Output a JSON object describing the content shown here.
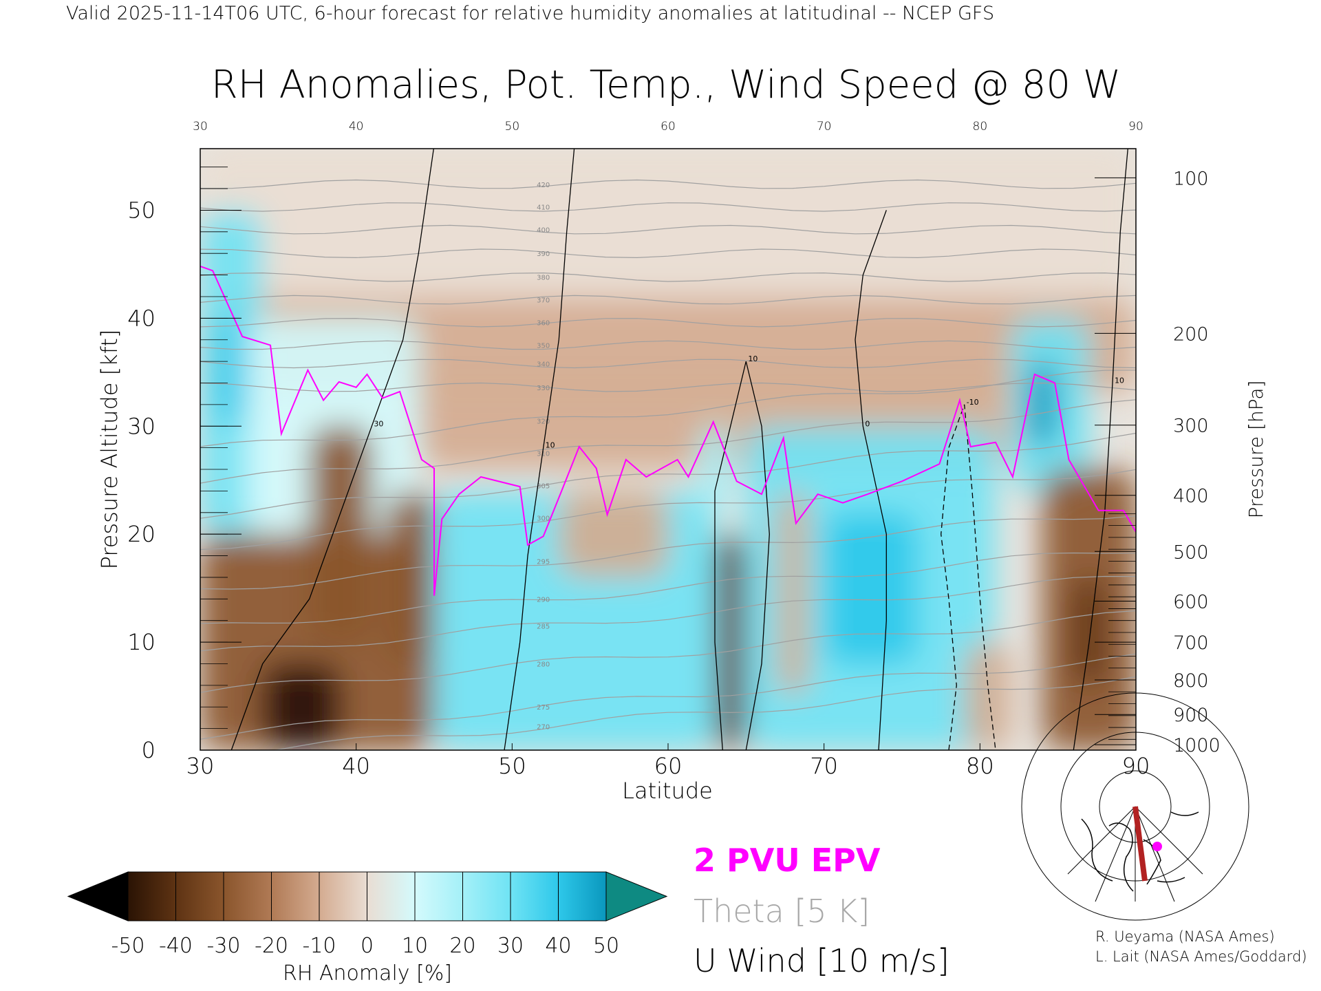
{
  "header": {
    "valid_line": "Valid 2025-11-14T06 UTC, 6-hour forecast for relative humidity anomalies at latitudinal -- NCEP GFS",
    "title": "RH Anomalies, Pot. Temp., Wind Speed @ 80 W"
  },
  "chart_data": {
    "type": "heatmap",
    "title": "RH Anomalies, Pot. Temp., Wind Speed @ 80 W",
    "xlabel": "Latitude",
    "ylabel": "Pressure Altitude [kft]",
    "ylabel_right": "Pressure [hPa]",
    "xlim": [
      30,
      90
    ],
    "ylim": [
      0,
      55.7
    ],
    "x_ticks": [
      "30",
      "40",
      "50",
      "60",
      "70",
      "80",
      "90"
    ],
    "x_tick_values": [
      30,
      40,
      50,
      60,
      70,
      80,
      90
    ],
    "top_ticks": [
      "30",
      "40",
      "50",
      "60",
      "70",
      "80",
      "90"
    ],
    "y_ticks": [
      "0",
      "10",
      "20",
      "30",
      "40",
      "50"
    ],
    "y_tick_values": [
      0,
      10,
      20,
      30,
      40,
      50
    ],
    "pressure_ticks": [
      {
        "label": "100",
        "kft": 53.0
      },
      {
        "label": "200",
        "kft": 38.6
      },
      {
        "label": "300",
        "kft": 30.1
      },
      {
        "label": "400",
        "kft": 23.6
      },
      {
        "label": "500",
        "kft": 18.4
      },
      {
        "label": "600",
        "kft": 13.8
      },
      {
        "label": "700",
        "kft": 10.0
      },
      {
        "label": "800",
        "kft": 6.5
      },
      {
        "label": "900",
        "kft": 3.3
      },
      {
        "label": "1000",
        "kft": 0.5
      }
    ],
    "colorbar": {
      "label": "RH Anomaly [%]",
      "tick_labels": [
        "-50",
        "-40",
        "-30",
        "-20",
        "-10",
        "0",
        "10",
        "20",
        "30",
        "40",
        "50"
      ],
      "below_color": "#000000",
      "above_color": "#0e8a82",
      "colors": [
        "#2a1304",
        "#5e3313",
        "#8a552c",
        "#b07a55",
        "#d4ab90",
        "#e9ddd3",
        "#d4fafc",
        "#a4f0f8",
        "#6fe3f4",
        "#2ec8ea",
        "#0a97bd"
      ]
    },
    "rh_anomaly_regions": [
      {
        "lat": [
          30,
          90
        ],
        "kft": [
          42,
          56
        ],
        "value": 2
      },
      {
        "lat": [
          30,
          90
        ],
        "kft": [
          33,
          42
        ],
        "value": -8
      },
      {
        "lat": [
          44,
          82
        ],
        "kft": [
          26,
          34
        ],
        "value": -14
      },
      {
        "lat": [
          30,
          34
        ],
        "kft": [
          20,
          50
        ],
        "value": 25
      },
      {
        "lat": [
          31,
          33
        ],
        "kft": [
          30,
          40
        ],
        "value": 42
      },
      {
        "lat": [
          33,
          44
        ],
        "kft": [
          20,
          40
        ],
        "value": 12
      },
      {
        "lat": [
          30,
          45
        ],
        "kft": [
          0,
          20
        ],
        "value": -28
      },
      {
        "lat": [
          34,
          39
        ],
        "kft": [
          0,
          8
        ],
        "value": -48
      },
      {
        "lat": [
          37,
          41
        ],
        "kft": [
          10,
          30
        ],
        "value": -30
      },
      {
        "lat": [
          42,
          45
        ],
        "kft": [
          8,
          24
        ],
        "value": -32
      },
      {
        "lat": [
          45,
          63
        ],
        "kft": [
          0,
          24
        ],
        "value": 25
      },
      {
        "lat": [
          53,
          60
        ],
        "kft": [
          16,
          24
        ],
        "value": -8
      },
      {
        "lat": [
          62,
          64
        ],
        "kft": [
          22,
          30
        ],
        "value": 20
      },
      {
        "lat": [
          63,
          65
        ],
        "kft": [
          0,
          20
        ],
        "value": -40
      },
      {
        "lat": [
          65,
          81
        ],
        "kft": [
          0,
          30
        ],
        "value": 25
      },
      {
        "lat": [
          70,
          76
        ],
        "kft": [
          8,
          22
        ],
        "value": 38
      },
      {
        "lat": [
          67,
          69
        ],
        "kft": [
          5,
          24
        ],
        "value": -10
      },
      {
        "lat": [
          79,
          82
        ],
        "kft": [
          0,
          10
        ],
        "value": -10
      },
      {
        "lat": [
          82,
          87
        ],
        "kft": [
          24,
          40
        ],
        "value": 30
      },
      {
        "lat": [
          83,
          85
        ],
        "kft": [
          28,
          36
        ],
        "value": 48
      },
      {
        "lat": [
          84,
          90
        ],
        "kft": [
          0,
          26
        ],
        "value": -26
      },
      {
        "lat": [
          86,
          88
        ],
        "kft": [
          6,
          16
        ],
        "value": -42
      }
    ],
    "theta_contours": {
      "interval_K": 5,
      "levels": [
        {
          "theta": 270,
          "kft": 2.2
        },
        {
          "theta": 275,
          "kft": 4.0
        },
        {
          "theta": 280,
          "kft": 8.0
        },
        {
          "theta": 285,
          "kft": 11.5
        },
        {
          "theta": 290,
          "kft": 14.0
        },
        {
          "theta": 295,
          "kft": 17.5
        },
        {
          "theta": 300,
          "kft": 21.5
        },
        {
          "theta": 305,
          "kft": 24.5
        },
        {
          "theta": 310,
          "kft": 27.5
        },
        {
          "theta": 320,
          "kft": 30.5
        },
        {
          "theta": 330,
          "kft": 33.6
        },
        {
          "theta": 340,
          "kft": 35.8
        },
        {
          "theta": 350,
          "kft": 37.5
        },
        {
          "theta": 360,
          "kft": 39.6
        },
        {
          "theta": 370,
          "kft": 41.7
        },
        {
          "theta": 380,
          "kft": 43.8
        },
        {
          "theta": 390,
          "kft": 46.0
        },
        {
          "theta": 400,
          "kft": 48.2
        },
        {
          "theta": 410,
          "kft": 50.3
        },
        {
          "theta": 420,
          "kft": 52.4
        }
      ]
    },
    "u_wind_contours": [
      {
        "label": "10",
        "points": [
          [
            49.5,
            0
          ],
          [
            50.5,
            10
          ],
          [
            51,
            18
          ],
          [
            52,
            28
          ],
          [
            53,
            38
          ],
          [
            53.5,
            48
          ],
          [
            54,
            56
          ]
        ]
      },
      {
        "label": "30",
        "points": [
          [
            32,
            0
          ],
          [
            34,
            8
          ],
          [
            37,
            14
          ],
          [
            39,
            22
          ],
          [
            41,
            30
          ],
          [
            43,
            38
          ],
          [
            44,
            46
          ],
          [
            45,
            56
          ]
        ]
      },
      {
        "label": "0",
        "points": [
          [
            73.5,
            0
          ],
          [
            74,
            12
          ],
          [
            74,
            20
          ],
          [
            72.5,
            30
          ],
          [
            72,
            38
          ],
          [
            72.5,
            44
          ],
          [
            74,
            50
          ]
        ]
      },
      {
        "label": "10",
        "points": [
          [
            63.5,
            0
          ],
          [
            63,
            10
          ],
          [
            63,
            24
          ],
          [
            64,
            30
          ],
          [
            65,
            36
          ],
          [
            66,
            30
          ],
          [
            66.5,
            20
          ],
          [
            66,
            8
          ],
          [
            65,
            0
          ]
        ]
      },
      {
        "label": "10",
        "points": [
          [
            86,
            0
          ],
          [
            87,
            10
          ],
          [
            88,
            22
          ],
          [
            88.5,
            34
          ],
          [
            89,
            48
          ],
          [
            89.5,
            56
          ]
        ]
      },
      {
        "label": "-10",
        "points": [
          [
            78,
            0
          ],
          [
            78.5,
            6
          ],
          [
            78,
            14
          ],
          [
            77.5,
            20
          ],
          [
            78,
            28
          ],
          [
            79,
            32
          ],
          [
            79.5,
            24
          ],
          [
            80,
            14
          ],
          [
            80.5,
            6
          ],
          [
            81,
            0
          ]
        ]
      }
    ],
    "pv_2pvu_line": [
      [
        30,
        44.8
      ],
      [
        30.8,
        44.4
      ],
      [
        32.7,
        38.3
      ],
      [
        34.5,
        37.5
      ],
      [
        35.2,
        29.3
      ],
      [
        36.9,
        35.2
      ],
      [
        37.9,
        32.4
      ],
      [
        38.9,
        34.1
      ],
      [
        40,
        33.6
      ],
      [
        40.7,
        34.8
      ],
      [
        41.7,
        32.6
      ],
      [
        42.8,
        33.2
      ],
      [
        44.2,
        26.9
      ],
      [
        45,
        26.1
      ],
      [
        45,
        14.3
      ],
      [
        45.5,
        21.4
      ],
      [
        46.6,
        23.7
      ],
      [
        48,
        25.3
      ],
      [
        50.5,
        24.4
      ],
      [
        51,
        19
      ],
      [
        52,
        19.8
      ],
      [
        53.2,
        24.1
      ],
      [
        54.3,
        28.1
      ],
      [
        55.4,
        26.1
      ],
      [
        56.1,
        21.8
      ],
      [
        57.3,
        26.9
      ],
      [
        58.6,
        25.3
      ],
      [
        60.6,
        26.9
      ],
      [
        61.3,
        25.3
      ],
      [
        62.9,
        30.4
      ],
      [
        64.4,
        24.9
      ],
      [
        66,
        23.7
      ],
      [
        67.4,
        28.9
      ],
      [
        68.2,
        21
      ],
      [
        69.6,
        23.7
      ],
      [
        71.2,
        22.9
      ],
      [
        72.8,
        23.7
      ],
      [
        75,
        24.9
      ],
      [
        77.4,
        26.5
      ],
      [
        78.7,
        32.4
      ],
      [
        79.4,
        28.1
      ],
      [
        81,
        28.5
      ],
      [
        82.1,
        25.3
      ],
      [
        83.5,
        34.8
      ],
      [
        84.8,
        34
      ],
      [
        85.7,
        26.9
      ],
      [
        87.6,
        22.2
      ],
      [
        89.2,
        22.2
      ],
      [
        90,
        20.2
      ]
    ],
    "legend": {
      "pv": "2 PVU EPV",
      "theta": "Theta [5 K]",
      "uwind": "U Wind [10 m/s]"
    },
    "series_colors": {
      "pv": "#ff00ff",
      "theta": "#a0a0a0",
      "uwind": "#000000",
      "cross_section": "#b22222"
    }
  },
  "credits": {
    "line1": "R. Ueyama (NASA Ames)",
    "line2": "L. Lait (NASA Ames/Goddard)"
  }
}
